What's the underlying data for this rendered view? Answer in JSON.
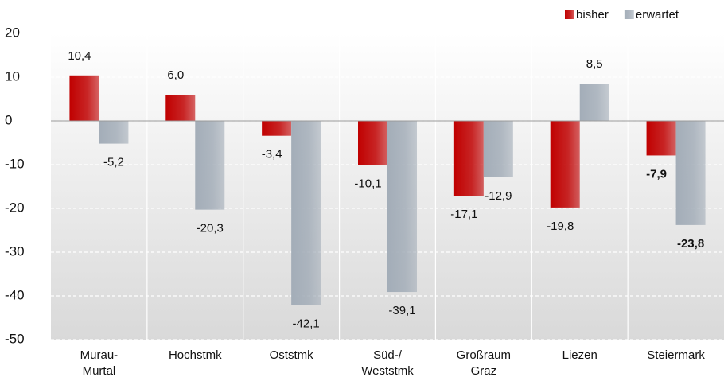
{
  "chart_data": {
    "type": "bar",
    "categories": [
      "Murau-\nMurtal",
      "Hochstmk",
      "Oststmk",
      "Süd-/\nWeststmk",
      "Großraum\nGraz",
      "Liezen",
      "Steiermark"
    ],
    "series": [
      {
        "name": "bisher",
        "color": "#c00000",
        "values": [
          10.4,
          6.0,
          -3.4,
          -10.1,
          -17.1,
          -19.8,
          -7.9
        ],
        "value_labels": [
          "10,4",
          "6,0",
          "-3,4",
          "-10,1",
          "-17,1",
          "-19,8",
          "-7,9"
        ]
      },
      {
        "name": "erwartet",
        "color": "#a3adb8",
        "values": [
          -5.2,
          -20.3,
          -42.1,
          -39.1,
          -12.9,
          8.5,
          -23.8
        ],
        "value_labels": [
          "-5,2",
          "-20,3",
          "-42,1",
          "-39,1",
          "-12,9",
          "8,5",
          "-23,8"
        ]
      }
    ],
    "emphasized_category": "Steiermark",
    "ylim": [
      -50,
      20
    ],
    "yticks": [
      20,
      10,
      0,
      -10,
      -20,
      -30,
      -40,
      -50
    ],
    "grid": true,
    "legend": "top-right"
  }
}
